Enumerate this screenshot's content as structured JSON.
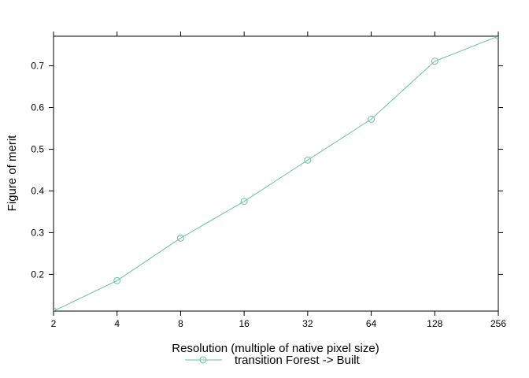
{
  "chart_data": {
    "type": "line",
    "xlabel": "Resolution (multiple of native pixel size)",
    "ylabel": "Figure of merit",
    "x_scale": "log2",
    "x_ticks": [
      "2",
      "4",
      "8",
      "16",
      "32",
      "64",
      "128",
      "256"
    ],
    "y_ticks": [
      "0.2",
      "0.3",
      "0.4",
      "0.5",
      "0.6",
      "0.7"
    ],
    "xlim": [
      2,
      256
    ],
    "ylim": [
      0.112,
      0.771
    ],
    "grid": false,
    "legend_position": "bottom",
    "series": [
      {
        "name": "transition Forest -> Built",
        "color": "#66c2a5",
        "marker": "open-circle",
        "x": [
          2,
          4,
          8,
          16,
          32,
          64,
          128,
          256
        ],
        "y": [
          0.112,
          0.185,
          0.287,
          0.375,
          0.474,
          0.572,
          0.711,
          0.771
        ]
      }
    ]
  }
}
